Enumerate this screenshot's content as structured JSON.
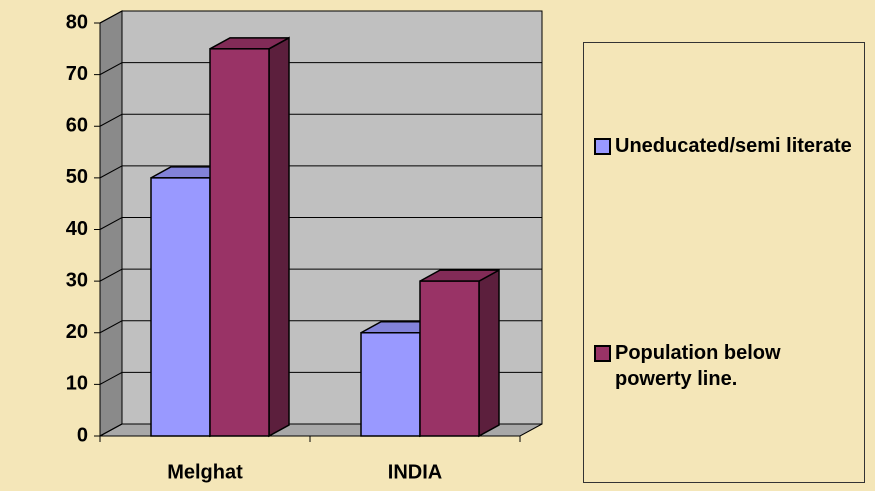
{
  "chart_data": {
    "type": "bar3d",
    "categories": [
      "Melghat",
      "INDIA"
    ],
    "series": [
      {
        "name": "Uneducated/semi literate",
        "color": "#9999ff",
        "values": [
          50,
          20
        ]
      },
      {
        "name": "Population below powerty line.",
        "color": "#993366",
        "values": [
          75,
          30
        ]
      }
    ],
    "ylim": [
      0,
      80
    ],
    "yticks": [
      0,
      10,
      20,
      30,
      40,
      50,
      60,
      70,
      80
    ],
    "grid": true,
    "legend": "right"
  }
}
